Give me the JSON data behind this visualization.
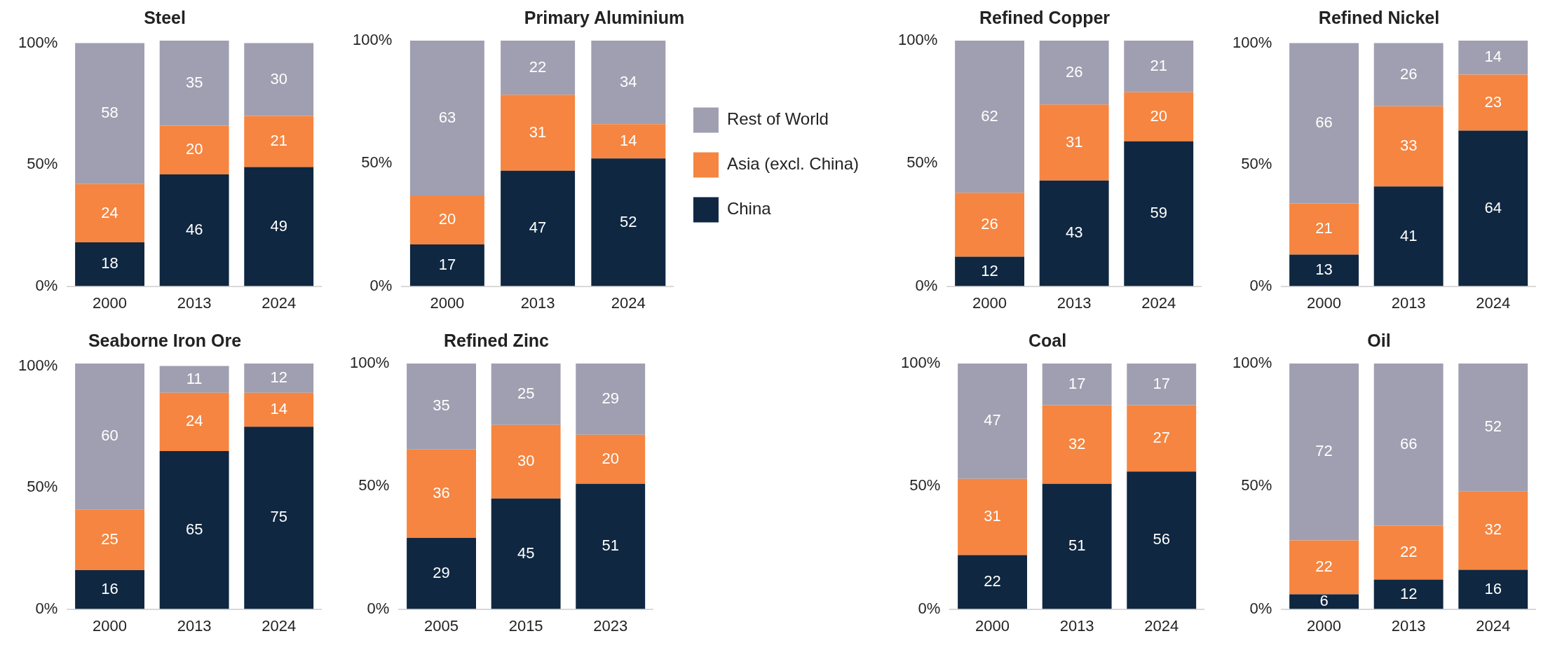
{
  "chart_data": [
    {
      "type": "bar",
      "stacked": true,
      "data_labels": true,
      "title": "Steel",
      "categories": [
        "2000",
        "2013",
        "2024"
      ],
      "ylim": [
        0,
        101
      ],
      "yticks": [
        {
          "value": 0,
          "label": "0%"
        },
        {
          "value": 50,
          "label": "50%"
        },
        {
          "value": 100,
          "label": "100%"
        }
      ],
      "series": [
        {
          "color": "#0f2741",
          "values": [
            18,
            46,
            49
          ]
        },
        {
          "color": "#f58540",
          "values": [
            24,
            20,
            21
          ]
        },
        {
          "color": "#a09fb1",
          "values": [
            58,
            35,
            30
          ]
        }
      ]
    },
    {
      "type": "bar",
      "stacked": true,
      "data_labels": true,
      "legend": "right",
      "title": "Primary Aluminium",
      "categories": [
        "2000",
        "2013",
        "2024"
      ],
      "ylim": [
        0,
        100
      ],
      "yticks": [
        {
          "value": 0,
          "label": "0%"
        },
        {
          "value": 50,
          "label": "50%"
        },
        {
          "value": 100,
          "label": "100%"
        }
      ],
      "series": [
        {
          "name": "China",
          "color": "#0f2741",
          "values": [
            17,
            47,
            52
          ]
        },
        {
          "name": "Asia (excl. China)",
          "color": "#f58540",
          "values": [
            20,
            31,
            14
          ]
        },
        {
          "name": "Rest of World",
          "color": "#a09fb1",
          "values": [
            63,
            22,
            34
          ]
        }
      ]
    },
    {
      "type": "bar",
      "stacked": true,
      "data_labels": true,
      "title": "Refined Copper",
      "categories": [
        "2000",
        "2013",
        "2024"
      ],
      "ylim": [
        0,
        100
      ],
      "yticks": [
        {
          "value": 0,
          "label": "0%"
        },
        {
          "value": 50,
          "label": "50%"
        },
        {
          "value": 100,
          "label": "100%"
        }
      ],
      "series": [
        {
          "color": "#0f2741",
          "values": [
            12,
            43,
            59
          ]
        },
        {
          "color": "#f58540",
          "values": [
            26,
            31,
            20
          ]
        },
        {
          "color": "#a09fb1",
          "values": [
            62,
            26,
            21
          ]
        }
      ]
    },
    {
      "type": "bar",
      "stacked": true,
      "data_labels": true,
      "title": "Refined Nickel",
      "categories": [
        "2000",
        "2013",
        "2024"
      ],
      "ylim": [
        0,
        101
      ],
      "yticks": [
        {
          "value": 0,
          "label": "0%"
        },
        {
          "value": 50,
          "label": "50%"
        },
        {
          "value": 100,
          "label": "100%"
        }
      ],
      "series": [
        {
          "color": "#0f2741",
          "values": [
            13,
            41,
            64
          ]
        },
        {
          "color": "#f58540",
          "values": [
            21,
            33,
            23
          ]
        },
        {
          "color": "#a09fb1",
          "values": [
            66,
            26,
            14
          ]
        }
      ]
    },
    {
      "type": "bar",
      "stacked": true,
      "data_labels": true,
      "title": "Seaborne Iron Ore",
      "categories": [
        "2000",
        "2013",
        "2024"
      ],
      "ylim": [
        0,
        101
      ],
      "yticks": [
        {
          "value": 0,
          "label": "0%"
        },
        {
          "value": 50,
          "label": "50%"
        },
        {
          "value": 100,
          "label": "100%"
        }
      ],
      "series": [
        {
          "color": "#0f2741",
          "values": [
            16,
            65,
            75
          ]
        },
        {
          "color": "#f58540",
          "values": [
            25,
            24,
            14
          ]
        },
        {
          "color": "#a09fb1",
          "values": [
            60,
            11,
            12
          ]
        }
      ]
    },
    {
      "type": "bar",
      "stacked": true,
      "data_labels": true,
      "title": "Refined Zinc",
      "categories": [
        "2005",
        "2015",
        "2023"
      ],
      "ylim": [
        0,
        100
      ],
      "yticks": [
        {
          "value": 0,
          "label": "0%"
        },
        {
          "value": 50,
          "label": "50%"
        },
        {
          "value": 100,
          "label": "100%"
        }
      ],
      "series": [
        {
          "color": "#0f2741",
          "values": [
            29,
            45,
            51
          ]
        },
        {
          "color": "#f58540",
          "values": [
            36,
            30,
            20
          ]
        },
        {
          "color": "#a09fb1",
          "values": [
            35,
            25,
            29
          ]
        }
      ]
    },
    {
      "type": "bar",
      "stacked": true,
      "data_labels": true,
      "title": "Coal",
      "categories": [
        "2000",
        "2013",
        "2024"
      ],
      "ylim": [
        0,
        100
      ],
      "yticks": [
        {
          "value": 0,
          "label": "0%"
        },
        {
          "value": 50,
          "label": "50%"
        },
        {
          "value": 100,
          "label": "100%"
        }
      ],
      "series": [
        {
          "color": "#0f2741",
          "values": [
            22,
            51,
            56
          ]
        },
        {
          "color": "#f58540",
          "values": [
            31,
            32,
            27
          ]
        },
        {
          "color": "#a09fb1",
          "values": [
            47,
            17,
            17
          ]
        }
      ]
    },
    {
      "type": "bar",
      "stacked": true,
      "data_labels": true,
      "title": "Oil",
      "categories": [
        "2000",
        "2013",
        "2024"
      ],
      "ylim": [
        0,
        100
      ],
      "yticks": [
        {
          "value": 0,
          "label": "0%"
        },
        {
          "value": 50,
          "label": "50%"
        },
        {
          "value": 100,
          "label": "100%"
        }
      ],
      "series": [
        {
          "color": "#0f2741",
          "values": [
            6,
            12,
            16
          ]
        },
        {
          "color": "#f58540",
          "values": [
            22,
            22,
            32
          ]
        },
        {
          "color": "#a09fb1",
          "values": [
            72,
            66,
            52
          ]
        }
      ]
    }
  ]
}
